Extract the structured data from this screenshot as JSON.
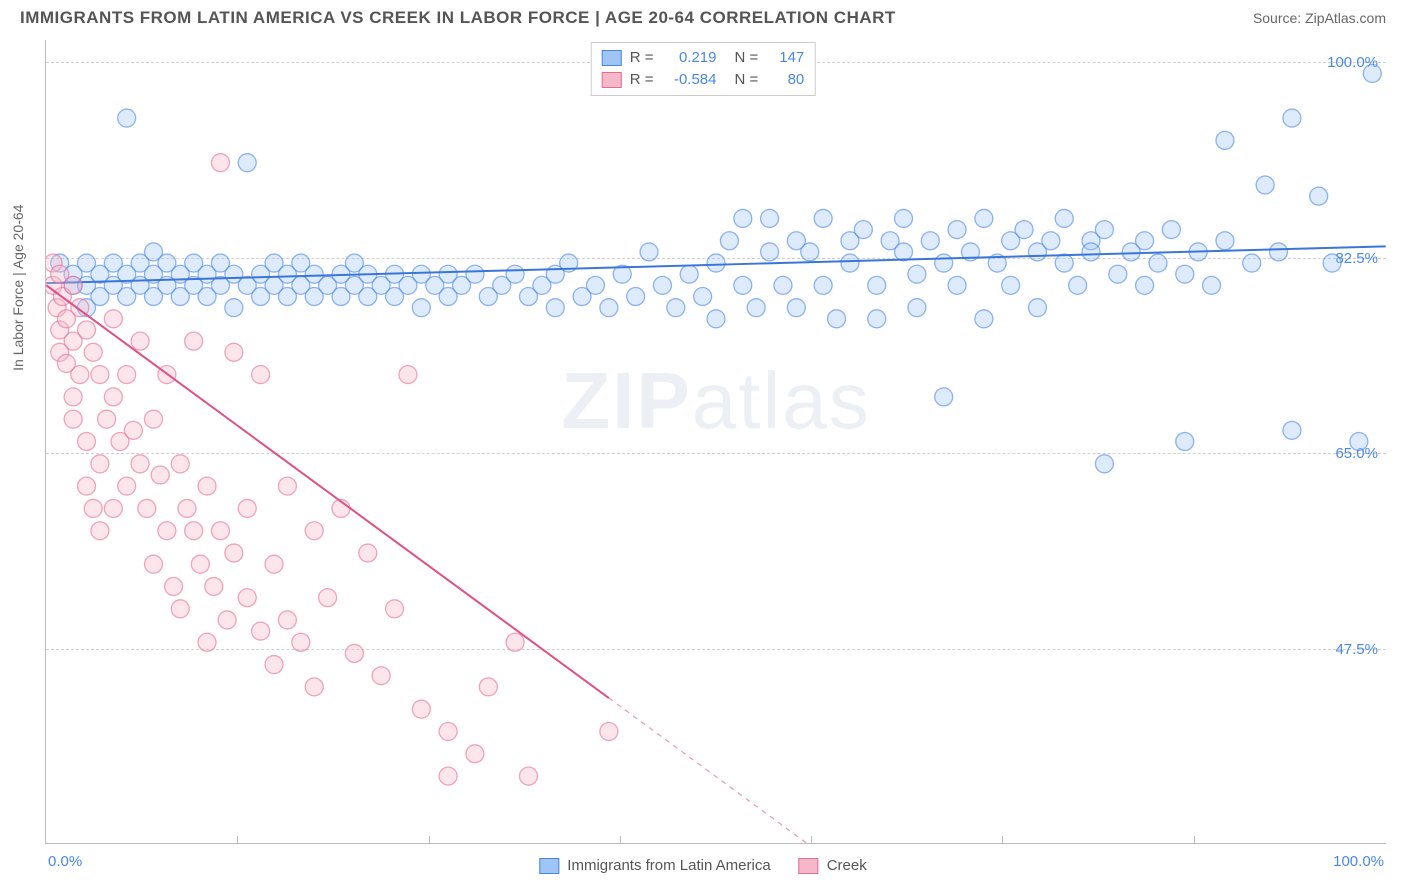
{
  "title": "IMMIGRANTS FROM LATIN AMERICA VS CREEK IN LABOR FORCE | AGE 20-64 CORRELATION CHART",
  "source": "Source: ZipAtlas.com",
  "watermark_bold": "ZIP",
  "watermark_light": "atlas",
  "y_axis_label": "In Labor Force | Age 20-64",
  "chart": {
    "type": "scatter",
    "xlim": [
      0,
      100
    ],
    "ylim": [
      30,
      102
    ],
    "x_ticks": [
      0,
      100
    ],
    "x_tick_labels": [
      "0.0%",
      "100.0%"
    ],
    "x_minor_ticks": [
      14.3,
      28.6,
      42.9,
      57.1,
      71.4,
      85.7
    ],
    "y_ticks": [
      47.5,
      65.0,
      82.5,
      100.0
    ],
    "y_tick_labels": [
      "47.5%",
      "65.0%",
      "82.5%",
      "100.0%"
    ],
    "grid_horizontal": true,
    "grid_color": "#d0d0d0",
    "background_color": "#ffffff",
    "axis_color": "#bbbbbb",
    "marker_radius": 9,
    "marker_opacity": 0.35,
    "marker_stroke_opacity": 0.6,
    "line_width": 2
  },
  "series": [
    {
      "name": "Immigrants from Latin America",
      "color_fill": "#9ec5f5",
      "color_stroke": "#4a86e8",
      "line_color": "#3a76d8",
      "R": "0.219",
      "N": "147",
      "regression": {
        "x1": 0,
        "y1": 80.2,
        "x2": 100,
        "y2": 83.5,
        "extrap_from": 100
      },
      "points": [
        [
          1,
          82
        ],
        [
          2,
          80
        ],
        [
          2,
          81
        ],
        [
          3,
          80
        ],
        [
          3,
          82
        ],
        [
          3,
          78
        ],
        [
          4,
          81
        ],
        [
          4,
          79
        ],
        [
          5,
          82
        ],
        [
          5,
          80
        ],
        [
          6,
          95
        ],
        [
          6,
          81
        ],
        [
          6,
          79
        ],
        [
          7,
          82
        ],
        [
          7,
          80
        ],
        [
          8,
          81
        ],
        [
          8,
          79
        ],
        [
          8,
          83
        ],
        [
          9,
          80
        ],
        [
          9,
          82
        ],
        [
          10,
          81
        ],
        [
          10,
          79
        ],
        [
          11,
          80
        ],
        [
          11,
          82
        ],
        [
          12,
          81
        ],
        [
          12,
          79
        ],
        [
          13,
          80
        ],
        [
          13,
          82
        ],
        [
          14,
          81
        ],
        [
          14,
          78
        ],
        [
          15,
          91
        ],
        [
          15,
          80
        ],
        [
          16,
          81
        ],
        [
          16,
          79
        ],
        [
          17,
          80
        ],
        [
          17,
          82
        ],
        [
          18,
          81
        ],
        [
          18,
          79
        ],
        [
          19,
          80
        ],
        [
          19,
          82
        ],
        [
          20,
          81
        ],
        [
          20,
          79
        ],
        [
          21,
          80
        ],
        [
          22,
          81
        ],
        [
          22,
          79
        ],
        [
          23,
          80
        ],
        [
          23,
          82
        ],
        [
          24,
          81
        ],
        [
          24,
          79
        ],
        [
          25,
          80
        ],
        [
          26,
          81
        ],
        [
          26,
          79
        ],
        [
          27,
          80
        ],
        [
          28,
          81
        ],
        [
          28,
          78
        ],
        [
          29,
          80
        ],
        [
          30,
          81
        ],
        [
          30,
          79
        ],
        [
          31,
          80
        ],
        [
          32,
          81
        ],
        [
          33,
          79
        ],
        [
          34,
          80
        ],
        [
          35,
          81
        ],
        [
          36,
          79
        ],
        [
          37,
          80
        ],
        [
          38,
          81
        ],
        [
          38,
          78
        ],
        [
          39,
          82
        ],
        [
          40,
          79
        ],
        [
          41,
          80
        ],
        [
          42,
          78
        ],
        [
          43,
          81
        ],
        [
          44,
          79
        ],
        [
          45,
          83
        ],
        [
          46,
          80
        ],
        [
          47,
          78
        ],
        [
          48,
          81
        ],
        [
          49,
          79
        ],
        [
          50,
          82
        ],
        [
          50,
          77
        ],
        [
          51,
          84
        ],
        [
          52,
          80
        ],
        [
          52,
          86
        ],
        [
          53,
          78
        ],
        [
          54,
          86
        ],
        [
          54,
          83
        ],
        [
          55,
          80
        ],
        [
          56,
          84
        ],
        [
          56,
          78
        ],
        [
          57,
          83
        ],
        [
          58,
          86
        ],
        [
          58,
          80
        ],
        [
          59,
          77
        ],
        [
          60,
          84
        ],
        [
          60,
          82
        ],
        [
          61,
          85
        ],
        [
          62,
          80
        ],
        [
          62,
          77
        ],
        [
          63,
          84
        ],
        [
          64,
          83
        ],
        [
          64,
          86
        ],
        [
          65,
          81
        ],
        [
          65,
          78
        ],
        [
          66,
          84
        ],
        [
          67,
          82
        ],
        [
          67,
          70
        ],
        [
          68,
          85
        ],
        [
          68,
          80
        ],
        [
          69,
          83
        ],
        [
          70,
          86
        ],
        [
          70,
          77
        ],
        [
          71,
          82
        ],
        [
          72,
          84
        ],
        [
          72,
          80
        ],
        [
          73,
          85
        ],
        [
          74,
          83
        ],
        [
          74,
          78
        ],
        [
          75,
          84
        ],
        [
          76,
          82
        ],
        [
          76,
          86
        ],
        [
          77,
          80
        ],
        [
          78,
          84
        ],
        [
          78,
          83
        ],
        [
          79,
          64
        ],
        [
          79,
          85
        ],
        [
          80,
          81
        ],
        [
          81,
          83
        ],
        [
          82,
          84
        ],
        [
          82,
          80
        ],
        [
          83,
          82
        ],
        [
          84,
          85
        ],
        [
          85,
          81
        ],
        [
          85,
          66
        ],
        [
          86,
          83
        ],
        [
          87,
          80
        ],
        [
          88,
          84
        ],
        [
          88,
          93
        ],
        [
          90,
          82
        ],
        [
          91,
          89
        ],
        [
          92,
          83
        ],
        [
          93,
          95
        ],
        [
          93,
          67
        ],
        [
          95,
          88
        ],
        [
          96,
          82
        ],
        [
          98,
          66
        ],
        [
          99,
          99
        ]
      ]
    },
    {
      "name": "Creek",
      "color_fill": "#f5b8c9",
      "color_stroke": "#e76b94",
      "line_color": "#e05088",
      "R": "-0.584",
      "N": "80",
      "regression": {
        "x1": 0,
        "y1": 80.0,
        "x2": 42,
        "y2": 43.0,
        "extrap_from": 42
      },
      "points": [
        [
          0.5,
          82
        ],
        [
          0.5,
          80
        ],
        [
          0.8,
          78
        ],
        [
          1,
          81
        ],
        [
          1,
          76
        ],
        [
          1,
          74
        ],
        [
          1.2,
          79
        ],
        [
          1.5,
          77
        ],
        [
          1.5,
          73
        ],
        [
          2,
          80
        ],
        [
          2,
          75
        ],
        [
          2,
          70
        ],
        [
          2,
          68
        ],
        [
          2.5,
          78
        ],
        [
          2.5,
          72
        ],
        [
          3,
          76
        ],
        [
          3,
          66
        ],
        [
          3,
          62
        ],
        [
          3.5,
          74
        ],
        [
          3.5,
          60
        ],
        [
          4,
          72
        ],
        [
          4,
          64
        ],
        [
          4,
          58
        ],
        [
          4.5,
          68
        ],
        [
          5,
          70
        ],
        [
          5,
          60
        ],
        [
          5,
          77
        ],
        [
          5.5,
          66
        ],
        [
          6,
          72
        ],
        [
          6,
          62
        ],
        [
          6.5,
          67
        ],
        [
          7,
          64
        ],
        [
          7,
          75
        ],
        [
          7.5,
          60
        ],
        [
          8,
          68
        ],
        [
          8,
          55
        ],
        [
          8.5,
          63
        ],
        [
          9,
          58
        ],
        [
          9,
          72
        ],
        [
          9.5,
          53
        ],
        [
          10,
          64
        ],
        [
          10,
          51
        ],
        [
          10.5,
          60
        ],
        [
          11,
          58
        ],
        [
          11,
          75
        ],
        [
          11.5,
          55
        ],
        [
          12,
          62
        ],
        [
          12,
          48
        ],
        [
          12.5,
          53
        ],
        [
          13,
          58
        ],
        [
          13,
          91
        ],
        [
          13.5,
          50
        ],
        [
          14,
          56
        ],
        [
          14,
          74
        ],
        [
          15,
          52
        ],
        [
          15,
          60
        ],
        [
          16,
          49
        ],
        [
          16,
          72
        ],
        [
          17,
          55
        ],
        [
          17,
          46
        ],
        [
          18,
          62
        ],
        [
          18,
          50
        ],
        [
          19,
          48
        ],
        [
          20,
          58
        ],
        [
          20,
          44
        ],
        [
          21,
          52
        ],
        [
          22,
          60
        ],
        [
          23,
          47
        ],
        [
          24,
          56
        ],
        [
          25,
          45
        ],
        [
          26,
          51
        ],
        [
          27,
          72
        ],
        [
          28,
          42
        ],
        [
          30,
          40
        ],
        [
          30,
          36
        ],
        [
          32,
          38
        ],
        [
          33,
          44
        ],
        [
          35,
          48
        ],
        [
          36,
          36
        ],
        [
          42,
          40
        ]
      ]
    }
  ],
  "legend_top_labels": {
    "R": "R =",
    "N": "N ="
  }
}
